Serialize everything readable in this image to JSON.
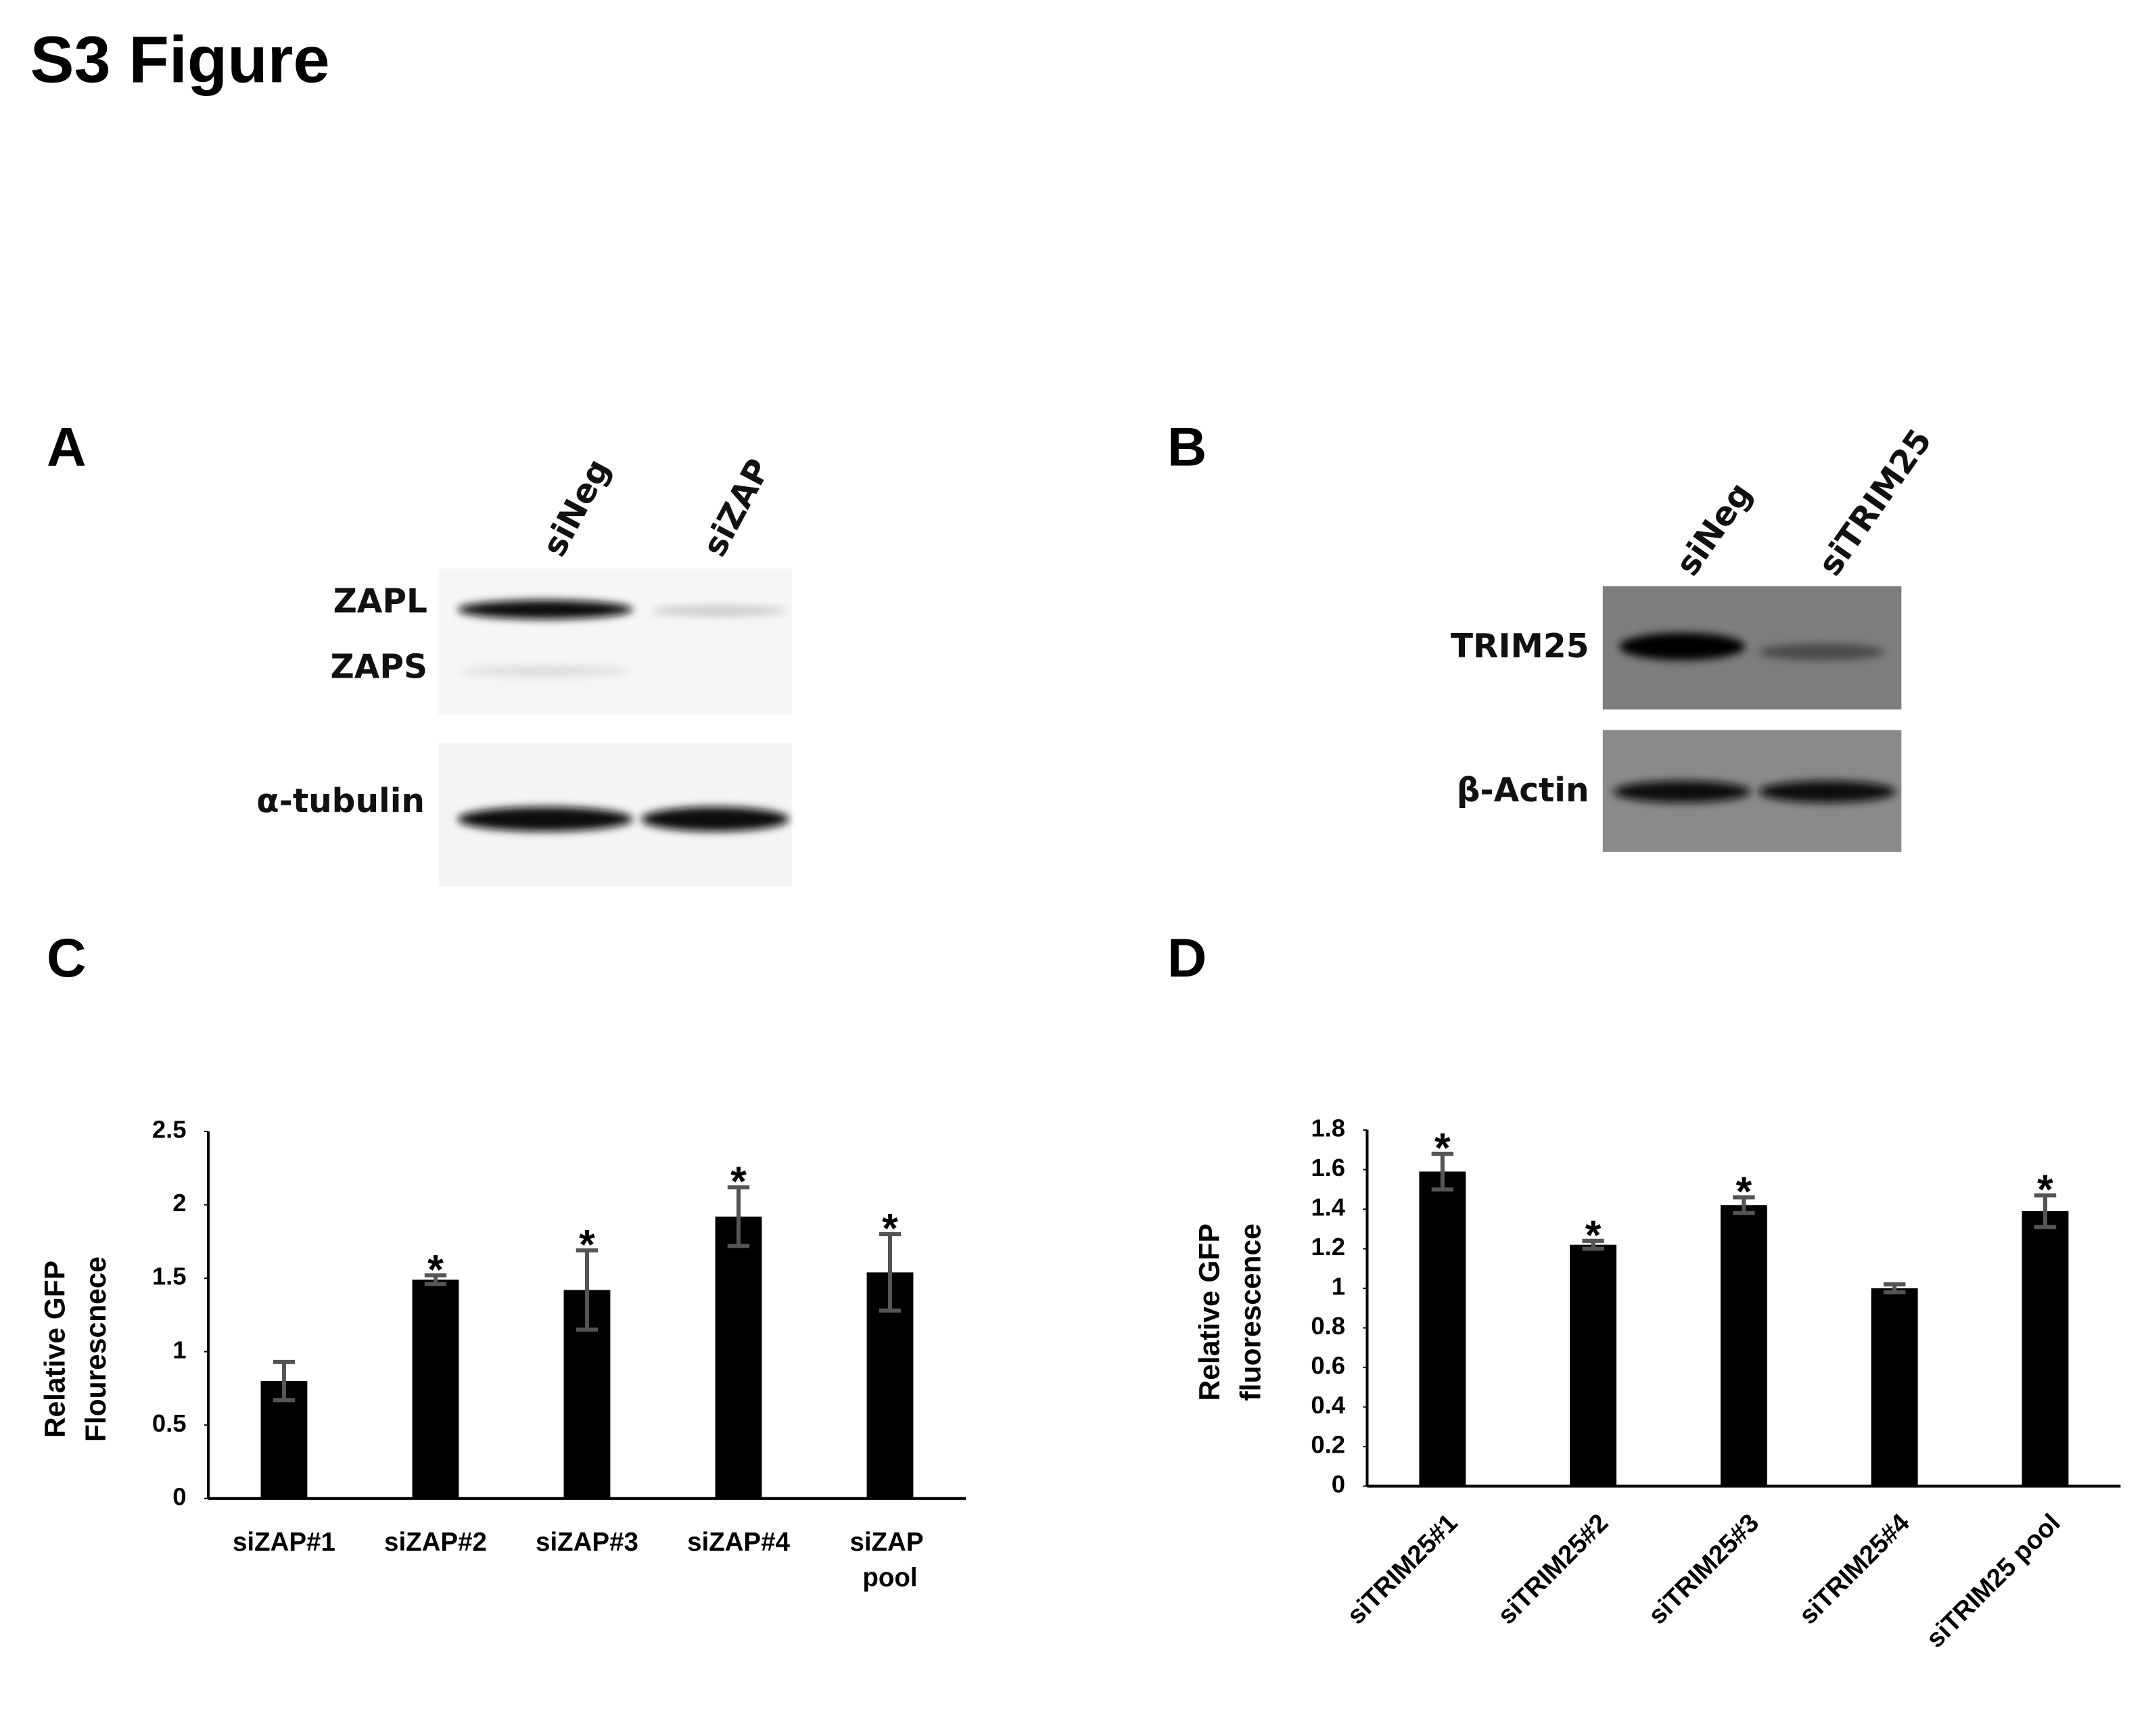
{
  "figure_title": "S3 Figure",
  "panels": {
    "A": {
      "label": "A",
      "lanes": [
        "siNeg",
        "siZAP"
      ],
      "bands": [
        "ZAPL",
        "ZAPS",
        "α-tubulin"
      ]
    },
    "B": {
      "label": "B",
      "lanes": [
        "siNeg",
        "siTRIM25"
      ],
      "bands": [
        "TRIM25",
        "β-Actin"
      ]
    },
    "C": {
      "label": "C"
    },
    "D": {
      "label": "D"
    }
  },
  "chart_data": [
    {
      "type": "bar",
      "ylabel": [
        "Relative GFP",
        "Flourescnece"
      ],
      "categories": [
        "siZAP#1",
        "siZAP#2",
        "siZAP#3",
        "siZAP#4",
        "siZAP pool"
      ],
      "values": [
        0.8,
        1.49,
        1.42,
        1.92,
        1.54
      ],
      "errors": [
        0.13,
        0.03,
        0.27,
        0.2,
        0.26
      ],
      "markers": [
        null,
        "*",
        "*",
        "*",
        "*"
      ],
      "color": "#000000",
      "ylim": [
        0,
        2.5
      ],
      "yticks": [
        0,
        0.5,
        1,
        1.5,
        2,
        2.5
      ],
      "grid": false
    },
    {
      "type": "bar",
      "ylabel": [
        "Relative GFP",
        "fluorescence"
      ],
      "categories": [
        "siTRIM25#1",
        "siTRIM25#2",
        "siTRIM25#3",
        "siTRIM25#4",
        "siTRIM25 pool"
      ],
      "values": [
        1.59,
        1.22,
        1.42,
        1.0,
        1.39
      ],
      "errors": [
        0.09,
        0.02,
        0.04,
        0.02,
        0.08
      ],
      "markers": [
        "*",
        "*",
        "*",
        null,
        "*"
      ],
      "color": "#000000",
      "ylim": [
        0,
        1.8
      ],
      "yticks": [
        0,
        0.2,
        0.4,
        0.6,
        0.8,
        1,
        1.2,
        1.4,
        1.6,
        1.8
      ],
      "grid": false
    }
  ]
}
